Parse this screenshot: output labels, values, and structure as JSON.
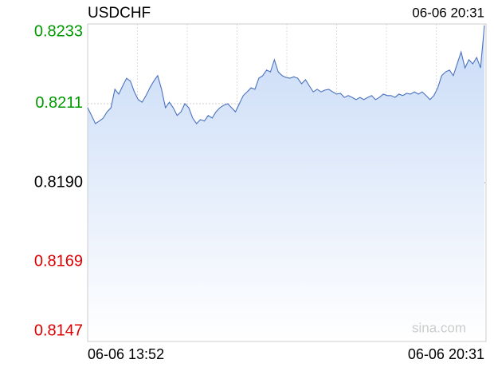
{
  "chart_data": {
    "type": "line",
    "title": "USDCHF",
    "timestamp": "06-06 20:31",
    "x_labels": [
      "06-06 13:52",
      "06-06 20:31"
    ],
    "watermark": "sina.com",
    "color": "#4a72c0",
    "ylim": [
      0.8147,
      0.8233
    ],
    "yticks": [
      0.8233,
      {
        "value": 0.82114,
        "label": "0.8211"
      },
      {
        "value": 0.819,
        "label": "0.8190"
      },
      {
        "value": 0.81686,
        "label": "0.8169"
      },
      0.8147
    ],
    "ytick_colors": [
      "#009900",
      "#009900",
      "#000000",
      "#dd0000",
      "#dd0000"
    ],
    "grid": true,
    "values": [
      0.82103,
      0.82082,
      0.8206,
      0.82067,
      0.82075,
      0.82092,
      0.82103,
      0.82153,
      0.8214,
      0.82162,
      0.82183,
      0.82175,
      0.82146,
      0.82125,
      0.82118,
      0.82136,
      0.82157,
      0.82175,
      0.8219,
      0.82153,
      0.82103,
      0.82118,
      0.82103,
      0.82082,
      0.82092,
      0.82114,
      0.82103,
      0.82075,
      0.8206,
      0.82071,
      0.82067,
      0.82082,
      0.82075,
      0.82092,
      0.82103,
      0.8211,
      0.82114,
      0.82103,
      0.82092,
      0.82114,
      0.82136,
      0.82146,
      0.82157,
      0.82153,
      0.82183,
      0.8219,
      0.82205,
      0.822,
      0.82233,
      0.822,
      0.8219,
      0.82185,
      0.82183,
      0.82187,
      0.82183,
      0.82168,
      0.82179,
      0.82162,
      0.82146,
      0.82153,
      0.82146,
      0.82151,
      0.82153,
      0.82146,
      0.8214,
      0.82142,
      0.82131,
      0.82136,
      0.82131,
      0.82125,
      0.82131,
      0.82125,
      0.82131,
      0.82136,
      0.82125,
      0.82131,
      0.8214,
      0.82136,
      0.82136,
      0.82131,
      0.8214,
      0.82136,
      0.82142,
      0.8214,
      0.82146,
      0.8214,
      0.82146,
      0.82136,
      0.82125,
      0.82136,
      0.82157,
      0.8219,
      0.822,
      0.82205,
      0.8219,
      0.82222,
      0.82254,
      0.82211,
      0.82233,
      0.82222,
      0.82239,
      0.82211,
      0.82326
    ]
  }
}
